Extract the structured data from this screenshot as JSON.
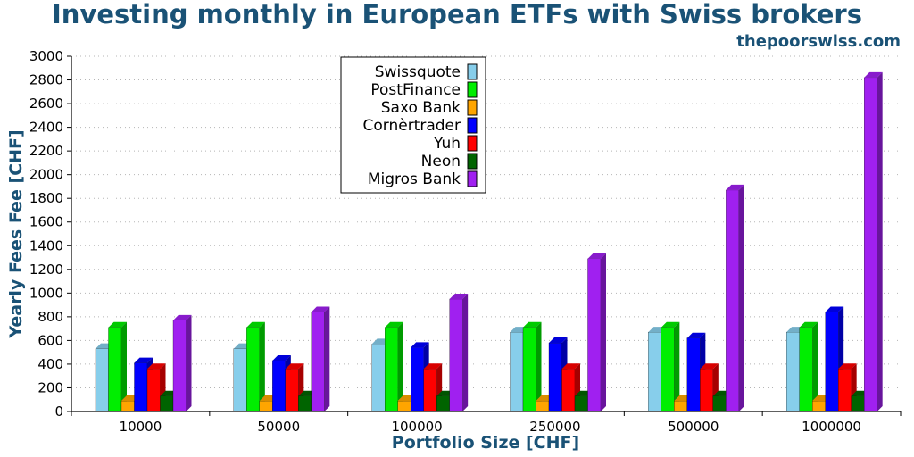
{
  "chart_data": {
    "type": "bar",
    "title": "Investing monthly in European ETFs with Swiss brokers",
    "subtitle": "thepoorswiss.com",
    "xlabel": "Portfolio Size [CHF]",
    "ylabel": "Yearly Fees Fee [CHF]",
    "ylim": [
      0,
      3000
    ],
    "yticks": [
      0,
      200,
      400,
      600,
      800,
      1000,
      1200,
      1400,
      1600,
      1800,
      2000,
      2200,
      2400,
      2600,
      2800,
      3000
    ],
    "grid": true,
    "legend_position": "top-center",
    "categories": [
      "10000",
      "50000",
      "100000",
      "250000",
      "500000",
      "1000000"
    ],
    "series": [
      {
        "name": "Swissquote",
        "color": "#87CEEB",
        "values": [
          530,
          530,
          570,
          670,
          670,
          670
        ]
      },
      {
        "name": "PostFinance",
        "color": "#00EE00",
        "values": [
          710,
          710,
          710,
          710,
          710,
          710
        ]
      },
      {
        "name": "Saxo Bank",
        "color": "#FFA500",
        "values": [
          90,
          90,
          90,
          90,
          90,
          90
        ]
      },
      {
        "name": "Cornèrtrader",
        "color": "#0000FF",
        "values": [
          410,
          430,
          540,
          580,
          620,
          840
        ]
      },
      {
        "name": "Yuh",
        "color": "#FF0000",
        "values": [
          360,
          360,
          360,
          360,
          360,
          360
        ]
      },
      {
        "name": "Neon",
        "color": "#006400",
        "values": [
          130,
          130,
          130,
          130,
          130,
          130
        ]
      },
      {
        "name": "Migros Bank",
        "color": "#A020F0",
        "values": [
          770,
          840,
          950,
          1290,
          1870,
          2820
        ]
      }
    ]
  }
}
